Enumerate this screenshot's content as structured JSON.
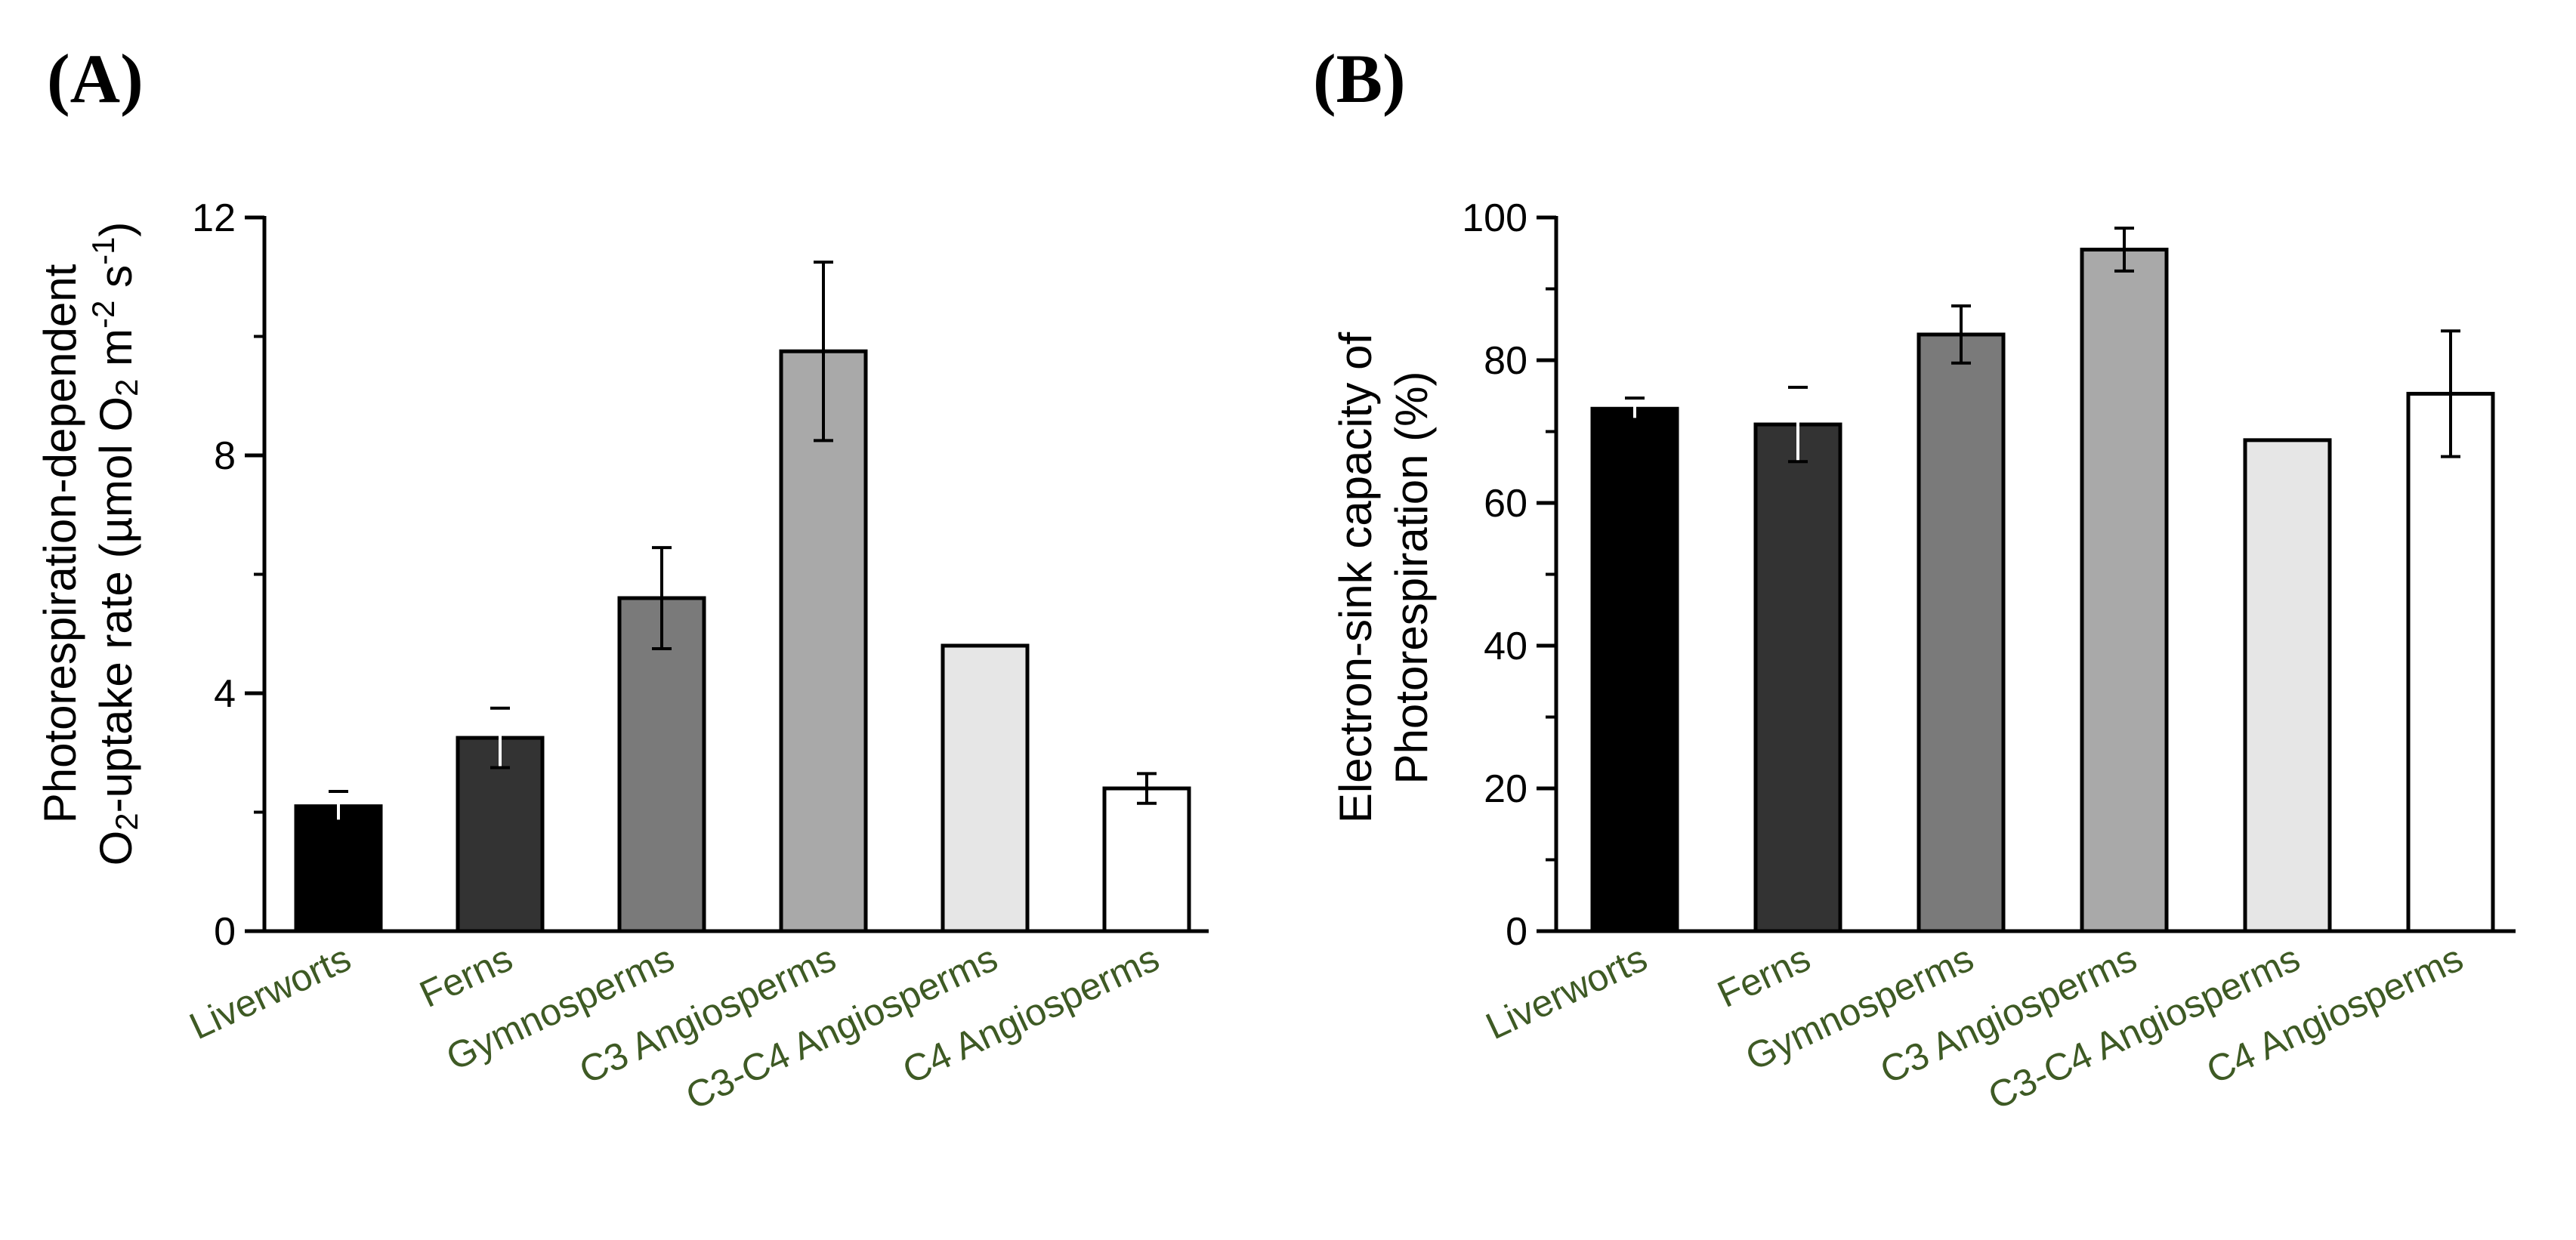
{
  "colors": {
    "axis": "#000000",
    "category_label": "#3e5a24",
    "bar_fills": [
      "#000000",
      "#333333",
      "#7a7a7a",
      "#a9a9a9",
      "#e6e6e6",
      "#ffffff"
    ]
  },
  "chart_data": [
    {
      "type": "bar",
      "panel_label": "(A)",
      "ylabel_line1": "Photorespiration-dependent",
      "ylabel_line2_parts": [
        "O",
        "2",
        "-uptake rate (µmol O",
        "2",
        " m",
        "-2",
        " s",
        "-1",
        ")"
      ],
      "ylim": [
        0,
        12
      ],
      "yticks": [
        "0",
        "4",
        "8",
        "12"
      ],
      "categories": [
        "Liverworts",
        "Ferns",
        "Gymnosperms",
        "C3 Angiosperms",
        "C3-C4 Angiosperms",
        "C4 Angiosperms"
      ],
      "values": [
        2.1,
        3.25,
        5.6,
        9.75,
        4.8,
        2.4
      ],
      "errors": [
        0.25,
        0.5,
        0.85,
        1.5,
        null,
        0.25
      ]
    },
    {
      "type": "bar",
      "panel_label": "(B)",
      "ylabel_line1": "Electron-sink capacity of",
      "ylabel_line2": "Photorespiration  (%)",
      "ylim": [
        0,
        100
      ],
      "yticks": [
        "0",
        "20",
        "40",
        "60",
        "80",
        "100"
      ],
      "categories": [
        "Liverworts",
        "Ferns",
        "Gymnosperms",
        "C3 Angiosperms",
        "C3-C4 Angiosperms",
        "C4 Angiosperms"
      ],
      "values": [
        73.2,
        71.0,
        83.6,
        95.5,
        68.8,
        75.3
      ],
      "errors": [
        1.5,
        5.2,
        4.0,
        3.0,
        null,
        8.8
      ]
    }
  ]
}
